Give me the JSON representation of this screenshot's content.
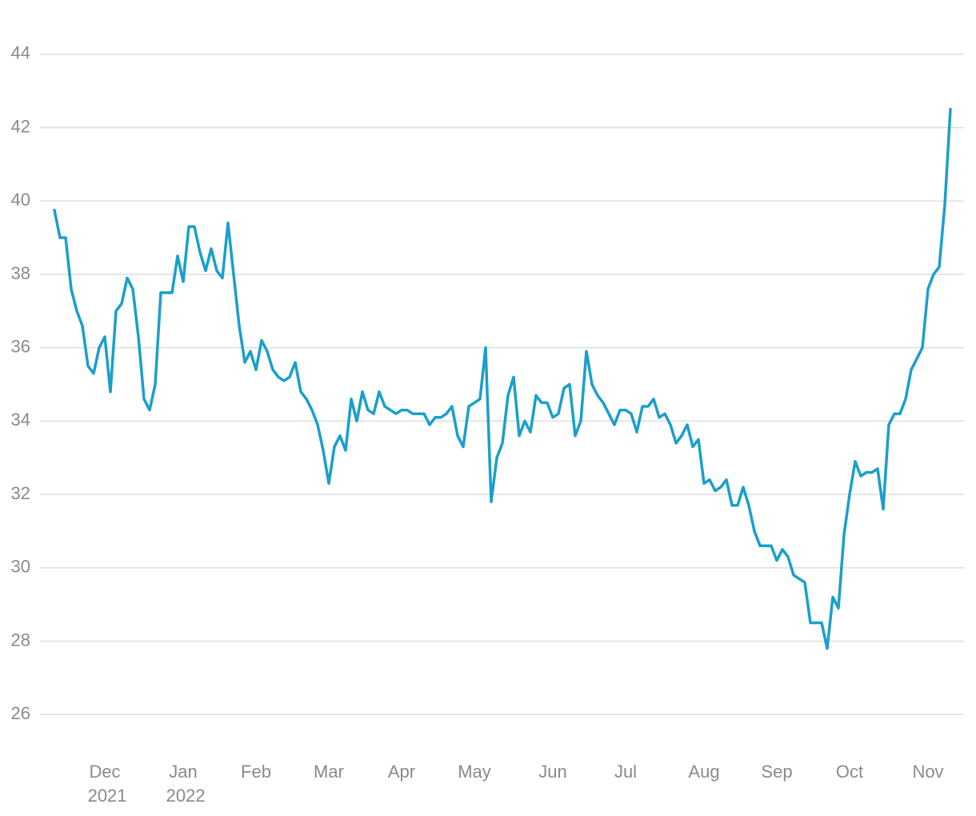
{
  "chart_data": {
    "type": "line",
    "categories": [
      null,
      null,
      null,
      null,
      null,
      null,
      null,
      null,
      null,
      "Dec 2021",
      null,
      null,
      null,
      null,
      null,
      null,
      null,
      null,
      null,
      null,
      null,
      null,
      null,
      "Jan 2022",
      null,
      null,
      null,
      null,
      null,
      null,
      null,
      null,
      null,
      null,
      null,
      null,
      "Feb",
      null,
      null,
      null,
      null,
      null,
      null,
      null,
      null,
      null,
      null,
      null,
      null,
      "Mar",
      null,
      null,
      null,
      null,
      null,
      null,
      null,
      null,
      null,
      null,
      null,
      null,
      "Apr",
      null,
      null,
      null,
      null,
      null,
      null,
      null,
      null,
      null,
      null,
      null,
      null,
      "May",
      null,
      null,
      null,
      null,
      null,
      null,
      null,
      null,
      null,
      null,
      null,
      null,
      null,
      "Jun",
      null,
      null,
      null,
      null,
      null,
      null,
      null,
      null,
      null,
      null,
      null,
      null,
      "Jul",
      null,
      null,
      null,
      null,
      null,
      null,
      null,
      null,
      null,
      null,
      null,
      null,
      null,
      "Aug",
      null,
      null,
      null,
      null,
      null,
      null,
      null,
      null,
      null,
      null,
      null,
      null,
      "Sep",
      null,
      null,
      null,
      null,
      null,
      null,
      null,
      null,
      null,
      null,
      null,
      null,
      "Oct",
      null,
      null,
      null,
      null,
      null,
      null,
      null,
      null,
      null,
      null,
      null,
      null,
      null,
      "Nov",
      null,
      null,
      null,
      null
    ],
    "series": [
      {
        "color": "#1a9fcb",
        "values": [
          39.75,
          39.0,
          39.0,
          37.6,
          37.0,
          36.6,
          35.5,
          35.3,
          36.0,
          36.3,
          34.8,
          37.0,
          37.2,
          37.9,
          37.6,
          36.3,
          34.6,
          34.3,
          35.0,
          37.5,
          37.5,
          37.5,
          38.5,
          37.8,
          39.3,
          39.3,
          38.6,
          38.1,
          38.7,
          38.1,
          37.9,
          39.4,
          38.0,
          36.6,
          35.6,
          35.9,
          35.4,
          36.2,
          35.9,
          35.4,
          35.2,
          35.1,
          35.2,
          35.6,
          34.8,
          34.6,
          34.3,
          33.9,
          33.2,
          32.3,
          33.3,
          33.6,
          33.2,
          34.6,
          34.0,
          34.8,
          34.3,
          34.2,
          34.8,
          34.4,
          34.3,
          34.2,
          34.3,
          34.3,
          34.2,
          34.2,
          34.2,
          33.9,
          34.1,
          34.1,
          34.2,
          34.4,
          33.6,
          33.3,
          34.4,
          34.5,
          34.6,
          36.0,
          31.8,
          33.0,
          33.4,
          34.7,
          35.2,
          33.6,
          34.0,
          33.7,
          34.7,
          34.5,
          34.5,
          34.1,
          34.2,
          34.9,
          35.0,
          33.6,
          34.0,
          35.9,
          35.0,
          34.7,
          34.5,
          34.2,
          33.9,
          34.3,
          34.3,
          34.2,
          33.7,
          34.4,
          34.4,
          34.6,
          34.1,
          34.2,
          33.9,
          33.4,
          33.6,
          33.9,
          33.3,
          33.5,
          32.3,
          32.4,
          32.1,
          32.2,
          32.4,
          31.7,
          31.7,
          32.2,
          31.7,
          31.0,
          30.6,
          30.6,
          30.6,
          30.2,
          30.5,
          30.3,
          29.8,
          29.7,
          29.6,
          28.5,
          28.5,
          28.5,
          27.8,
          29.2,
          28.9,
          30.9,
          32.0,
          32.9,
          32.5,
          32.6,
          32.6,
          32.7,
          31.6,
          33.9,
          34.2,
          34.2,
          34.6,
          35.4,
          35.7,
          36.0,
          37.6,
          38.0,
          38.2,
          39.9,
          42.5
        ]
      }
    ],
    "ylim": [
      25,
      45
    ],
    "yticks": [
      26,
      28,
      30,
      32,
      34,
      36,
      38,
      40,
      42,
      44
    ],
    "grid": true
  }
}
